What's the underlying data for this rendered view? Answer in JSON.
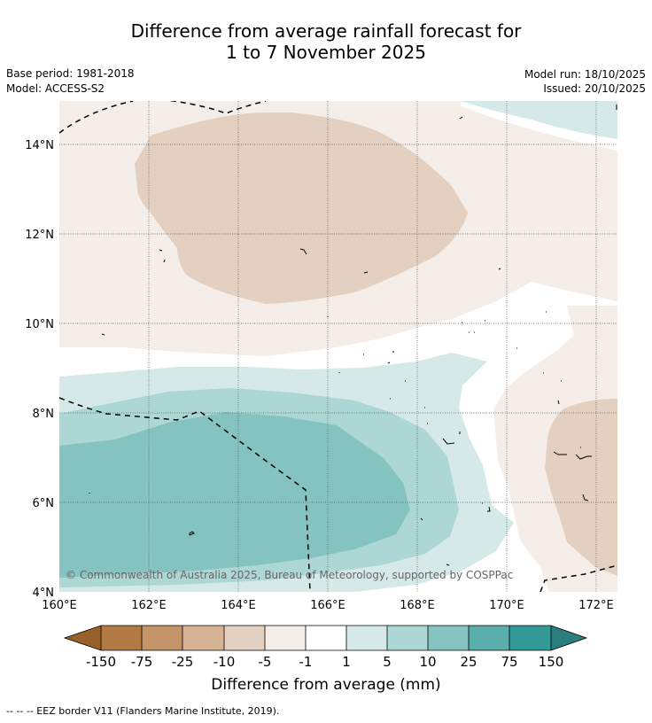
{
  "title": {
    "line1": "Difference from average rainfall forecast for",
    "line2": "1 to 7 November 2025"
  },
  "meta": {
    "base_period": "Base period: 1981-2018",
    "model": "Model: ACCESS-S2",
    "model_run": "Model run: 18/10/2025",
    "issued": "Issued: 20/10/2025"
  },
  "map": {
    "lat_labels": [
      "14°N",
      "12°N",
      "10°N",
      "8°N",
      "6°N",
      "4°N"
    ],
    "lon_labels": [
      "160°E",
      "162°E",
      "164°E",
      "166°E",
      "168°E",
      "170°E",
      "172°E"
    ],
    "copyright": "© Commonwealth of Australia 2025, Bureau of Meteorology, supported by COSPPac",
    "colors": {
      "lt_minus10": "#e3d0c0",
      "minus5_minus1": "#f5ede8",
      "minus1_1": "#ffffff",
      "1_5": "#d4e9e8",
      "5_10": "#acd7d5",
      "10_25": "#85c3c1",
      "eez": "#000000"
    }
  },
  "colorbar": {
    "ticks": [
      "-150",
      "-75",
      "-25",
      "-10",
      "-5",
      "-1",
      "1",
      "5",
      "10",
      "25",
      "75",
      "150"
    ],
    "colors": [
      "#98612a",
      "#b17a44",
      "#c49568",
      "#d5b394",
      "#e3d0c0",
      "#f5ede8",
      "#ffffff",
      "#d4e9e8",
      "#acd7d5",
      "#85c3c1",
      "#5aaeac",
      "#339a97",
      "#2a7f7e"
    ],
    "label": "Difference from average (mm)"
  },
  "footer": "--  --  -- EEZ border V11 (Flanders Marine Institute, 2019)."
}
